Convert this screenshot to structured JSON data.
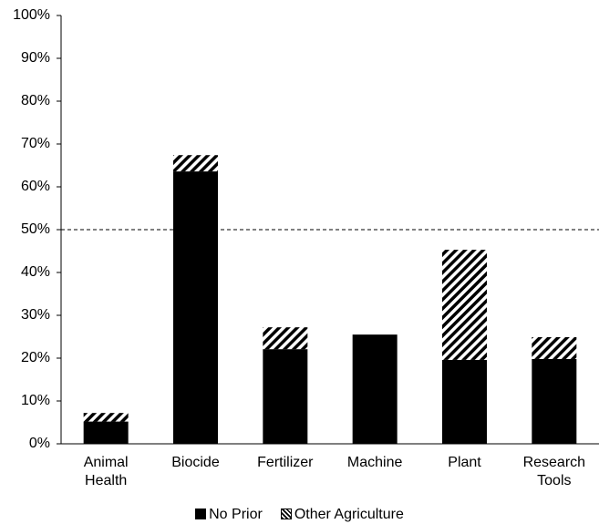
{
  "chart_data": {
    "type": "stacked_bar",
    "categories": [
      "Animal Health",
      "Biocide",
      "Fertilizer",
      "Machine",
      "Plant",
      "Research Tools"
    ],
    "series": [
      {
        "name": "No Prior",
        "color": "#000000",
        "pattern": "solid",
        "values": [
          5.2,
          63.6,
          22.1,
          25.5,
          19.6,
          19.8
        ]
      },
      {
        "name": "Other Agriculture",
        "color": "#000000",
        "pattern": "diagonal",
        "values": [
          2.0,
          3.8,
          5.1,
          0,
          25.7,
          5.1
        ]
      }
    ],
    "ylim": [
      0,
      100
    ],
    "yticks": [
      {
        "value": 0,
        "label": "0%"
      },
      {
        "value": 10,
        "label": "10%"
      },
      {
        "value": 20,
        "label": "20%"
      },
      {
        "value": 30,
        "label": "30%"
      },
      {
        "value": 40,
        "label": "40%"
      },
      {
        "value": 50,
        "label": "50%"
      },
      {
        "value": 60,
        "label": "60%"
      },
      {
        "value": 70,
        "label": "70%"
      },
      {
        "value": 80,
        "label": "80%"
      },
      {
        "value": 90,
        "label": "90%"
      },
      {
        "value": 100,
        "label": "100%"
      }
    ],
    "reference_line": 50,
    "legend": "bottom"
  }
}
